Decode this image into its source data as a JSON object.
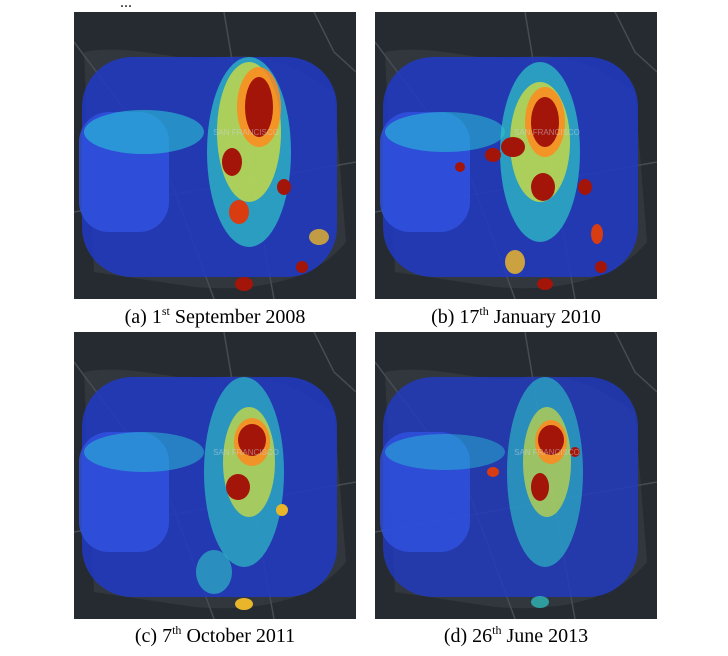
{
  "figure": {
    "top_cut_text": "...",
    "map_watermark": "SAN FRANCISCO",
    "colors": {
      "background": "#ffffff",
      "map_dark": "#262b31",
      "land": "#32373d",
      "road": "#474c52",
      "heat_low": "#1a3ad8",
      "heat_mid": "#2fd6cf",
      "heat_high": "#f0e23a",
      "heat_peak": "#9a1208"
    },
    "panels": [
      {
        "label": "(a)",
        "day": "1",
        "suffix": "st",
        "rest": "September 2008"
      },
      {
        "label": "(b)",
        "day": "17",
        "suffix": "th",
        "rest": "January 2010"
      },
      {
        "label": "(c)",
        "day": "7",
        "suffix": "th",
        "rest": "October 2011"
      },
      {
        "label": "(d)",
        "day": "26",
        "suffix": "th",
        "rest": "June 2013"
      }
    ]
  }
}
